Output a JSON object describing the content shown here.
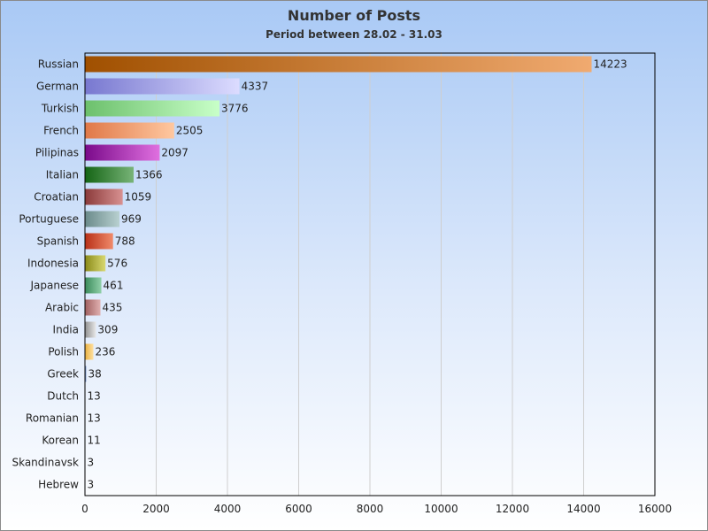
{
  "chart_data": {
    "type": "bar",
    "orientation": "horizontal",
    "title": "Number of Posts",
    "subtitle": "Period between 28.02 - 31.03",
    "xlim": [
      0,
      16000
    ],
    "x_ticks": [
      0,
      2000,
      4000,
      6000,
      8000,
      10000,
      12000,
      14000,
      16000
    ],
    "grid": "vertical",
    "categories": [
      "Russian",
      "German",
      "Turkish",
      "French",
      "Pilipinas",
      "Italian",
      "Croatian",
      "Portuguese",
      "Spanish",
      "Indonesia",
      "Japanese",
      "Arabic",
      "India",
      "Polish",
      "Greek",
      "Dutch",
      "Romanian",
      "Korean",
      "Skandinavsk",
      "Hebrew"
    ],
    "values": [
      14223,
      4337,
      3776,
      2505,
      2097,
      1366,
      1059,
      969,
      788,
      576,
      461,
      435,
      309,
      236,
      38,
      13,
      13,
      11,
      3,
      3
    ],
    "colors": [
      [
        "#a05000",
        "#f0aa70"
      ],
      [
        "#7878d0",
        "#dcdcff"
      ],
      [
        "#6cc06c",
        "#c8ffc8"
      ],
      [
        "#e07848",
        "#ffc8a0"
      ],
      [
        "#7a0a8a",
        "#e070e0"
      ],
      [
        "#146414",
        "#78b478"
      ],
      [
        "#8a3a3a",
        "#d89090"
      ],
      [
        "#6a8a8a",
        "#b8d0d0"
      ],
      [
        "#b83018",
        "#f08a6a"
      ],
      [
        "#8a8a18",
        "#d8d870"
      ],
      [
        "#3a8a5a",
        "#90d0a8"
      ],
      [
        "#a06060",
        "#e0b0b0"
      ],
      [
        "#909090",
        "#e8e8e8"
      ],
      [
        "#e8b040",
        "#ffe0a0"
      ],
      [
        "#4060a0",
        "#a0b8e0"
      ],
      [
        "#a06030",
        "#e0b080"
      ],
      [
        "#606060",
        "#c0c0c0"
      ],
      [
        "#80a040",
        "#c8e090"
      ],
      [
        "#a04080",
        "#e0a0c8"
      ],
      [
        "#4080a0",
        "#a0c8e0"
      ]
    ]
  }
}
